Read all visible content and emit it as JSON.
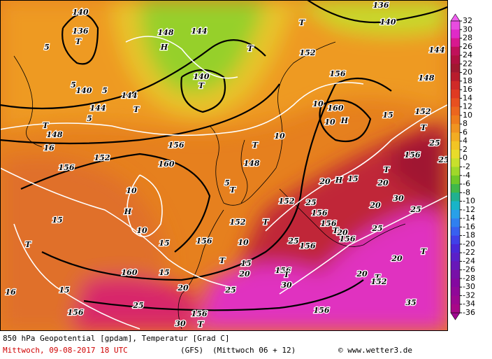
{
  "map": {
    "labels": [
      "140",
      "136",
      "T",
      "5",
      "5",
      "140",
      "5",
      "144",
      "144",
      "T",
      "5",
      "T",
      "148",
      "16",
      "152",
      "156",
      "160",
      "156",
      "10",
      "H",
      "15",
      "10",
      "T",
      "15",
      "160",
      "15",
      "16",
      "15",
      "156",
      "20",
      "25",
      "30",
      "T",
      "156",
      "148",
      "H",
      "144",
      "140",
      "T",
      "T",
      "T",
      "136",
      "140",
      "144",
      "152",
      "156",
      "148",
      "160",
      "H",
      "10",
      "10",
      "10",
      "T",
      "148",
      "T",
      "5",
      "20",
      "H",
      "15",
      "25",
      "156",
      "152",
      "152",
      "T",
      "156",
      "T",
      "20",
      "25",
      "156",
      "25",
      "156",
      "156",
      "10",
      "15",
      "T",
      "20",
      "156",
      "T",
      "30",
      "25",
      "20",
      "T",
      "152",
      "20",
      "25",
      "30",
      "20",
      "20",
      "T",
      "156",
      "25",
      "T",
      "25",
      "15",
      "152",
      "156",
      "35",
      "T"
    ]
  },
  "colorbar": {
    "ticks": [
      32,
      30,
      28,
      26,
      24,
      22,
      20,
      18,
      16,
      14,
      12,
      10,
      8,
      6,
      4,
      2,
      0,
      -2,
      -4,
      -6,
      -8,
      -10,
      -12,
      -14,
      -16,
      -18,
      -20,
      -22,
      -24,
      -26,
      -28,
      -30,
      -32,
      -34,
      -36
    ],
    "colors": [
      "#e84ce0",
      "#e02ac8",
      "#d81890",
      "#c0105a",
      "#b01040",
      "#a01830",
      "#b81c2c",
      "#d02a28",
      "#e03a22",
      "#e85020",
      "#ec661e",
      "#ee7c1c",
      "#f09420",
      "#f2ac22",
      "#f2c424",
      "#e8dc2a",
      "#c8e02c",
      "#a0d82a",
      "#70c828",
      "#40b84a",
      "#20b090",
      "#18b4c8",
      "#28a0e8",
      "#3080f0",
      "#3860f0",
      "#4040e8",
      "#4a28d8",
      "#5a20c8",
      "#6818b8",
      "#7810a8",
      "#8408a0",
      "#900898",
      "#9c0890",
      "#a80888"
    ],
    "top_color": "#f060f0",
    "bottom_color": "#a00890"
  },
  "footer": {
    "line1": "850 hPa Geopotential [gpdam], Temperatur [Grad C]",
    "date": "Mittwoch, 09-08-2017  18 UTC",
    "model": "(GFS)",
    "run": "(Mittwoch 06 + 12)",
    "credit": "© www.wetter3.de"
  }
}
